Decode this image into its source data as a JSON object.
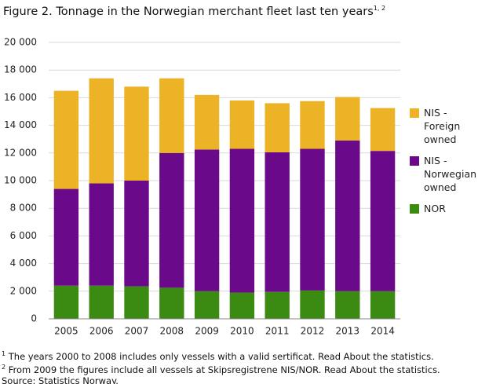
{
  "chart_data": {
    "type": "stacked-bar",
    "title": "Figure 2. Tonnage in the Norwegian merchant fleet last ten years",
    "title_sup": "1, 2",
    "categories": [
      "2005",
      "2006",
      "2007",
      "2008",
      "2009",
      "2010",
      "2011",
      "2012",
      "2013",
      "2014"
    ],
    "series": [
      {
        "name": "NOR",
        "color": "#3b8a12",
        "values": [
          2400,
          2400,
          2350,
          2250,
          2000,
          1900,
          1950,
          2050,
          2000,
          2000
        ]
      },
      {
        "name": "NIS - Norwegian owned",
        "color": "#6a0a8a",
        "values": [
          7000,
          7400,
          7650,
          9750,
          10250,
          10400,
          10100,
          10250,
          10900,
          10150
        ]
      },
      {
        "name": "NIS - Foreign owned",
        "color": "#ebb325",
        "values": [
          7100,
          7600,
          6800,
          5400,
          3950,
          3500,
          3550,
          3450,
          3150,
          3100
        ]
      }
    ],
    "ylim": [
      0,
      20000
    ],
    "yticks": [
      0,
      {
        "value": 2000,
        "label": "2 000"
      },
      {
        "value": 4000,
        "label": "4 000"
      },
      {
        "value": 6000,
        "label": "6 000"
      },
      {
        "value": 8000,
        "label": "8 000"
      },
      {
        "value": 10000,
        "label": "10 000"
      },
      {
        "value": 12000,
        "label": "12 000"
      },
      {
        "value": 14000,
        "label": "14 000"
      },
      {
        "value": 16000,
        "label": "16 000"
      },
      {
        "value": 18000,
        "label": "18 000"
      },
      {
        "value": 20000,
        "label": "20 000"
      }
    ],
    "grid": true,
    "legend": "right",
    "notes": [
      {
        "marker": "1",
        "text": " The years 2000 to 2008 includes only vessels with a valid sertificat. Read About the statistics."
      },
      {
        "marker": "2",
        "text": " From 2009 the figures include all vessels at Skipsregistrene NIS/NOR. Read About the statistics."
      }
    ],
    "source": "Source: Statistics Norway."
  }
}
